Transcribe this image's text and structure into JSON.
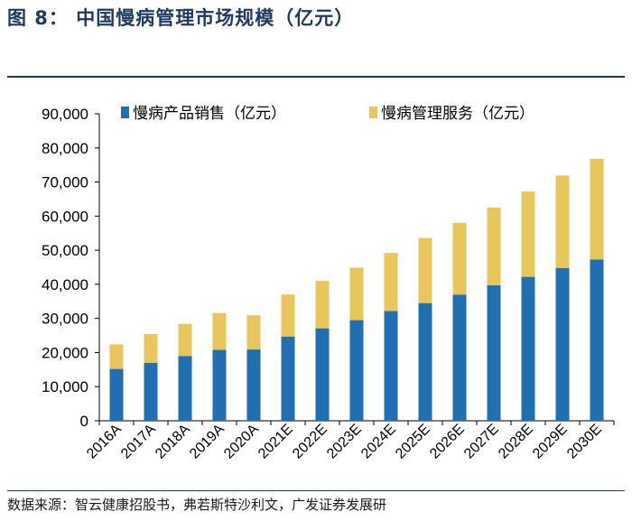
{
  "figure": {
    "title": "图  8：  中国慢病管理市场规模（亿元）",
    "source": "数据来源：智云健康招股书，弗若斯特沙利文，广发证券发展研"
  },
  "chart_data": {
    "type": "bar",
    "stacked": true,
    "categories": [
      "2016A",
      "2017A",
      "2018A",
      "2019A",
      "2020A",
      "2021E",
      "2022E",
      "2023E",
      "2024E",
      "2025E",
      "2026E",
      "2027E",
      "2028E",
      "2029E",
      "2030E"
    ],
    "series": [
      {
        "name": "慢病产品销售（亿元）",
        "color": "#1f6fb2",
        "values": [
          15200,
          17000,
          19000,
          20800,
          20900,
          24700,
          27100,
          29500,
          32200,
          34500,
          37000,
          39700,
          42200,
          44800,
          47300
        ]
      },
      {
        "name": "慢病管理服务（亿元）",
        "color": "#e8c65a",
        "values": [
          7200,
          8400,
          9400,
          10800,
          10000,
          12300,
          13900,
          15400,
          17000,
          19100,
          21000,
          22800,
          25000,
          27100,
          29500
        ]
      }
    ],
    "ylim": [
      0,
      90000
    ],
    "yticks": [
      0,
      10000,
      20000,
      30000,
      40000,
      50000,
      60000,
      70000,
      80000,
      90000
    ],
    "ytick_labels": [
      "0",
      "10,000",
      "20,000",
      "30,000",
      "40,000",
      "50,000",
      "60,000",
      "70,000",
      "80,000",
      "90,000"
    ],
    "grid": false,
    "legend_position": "top"
  }
}
